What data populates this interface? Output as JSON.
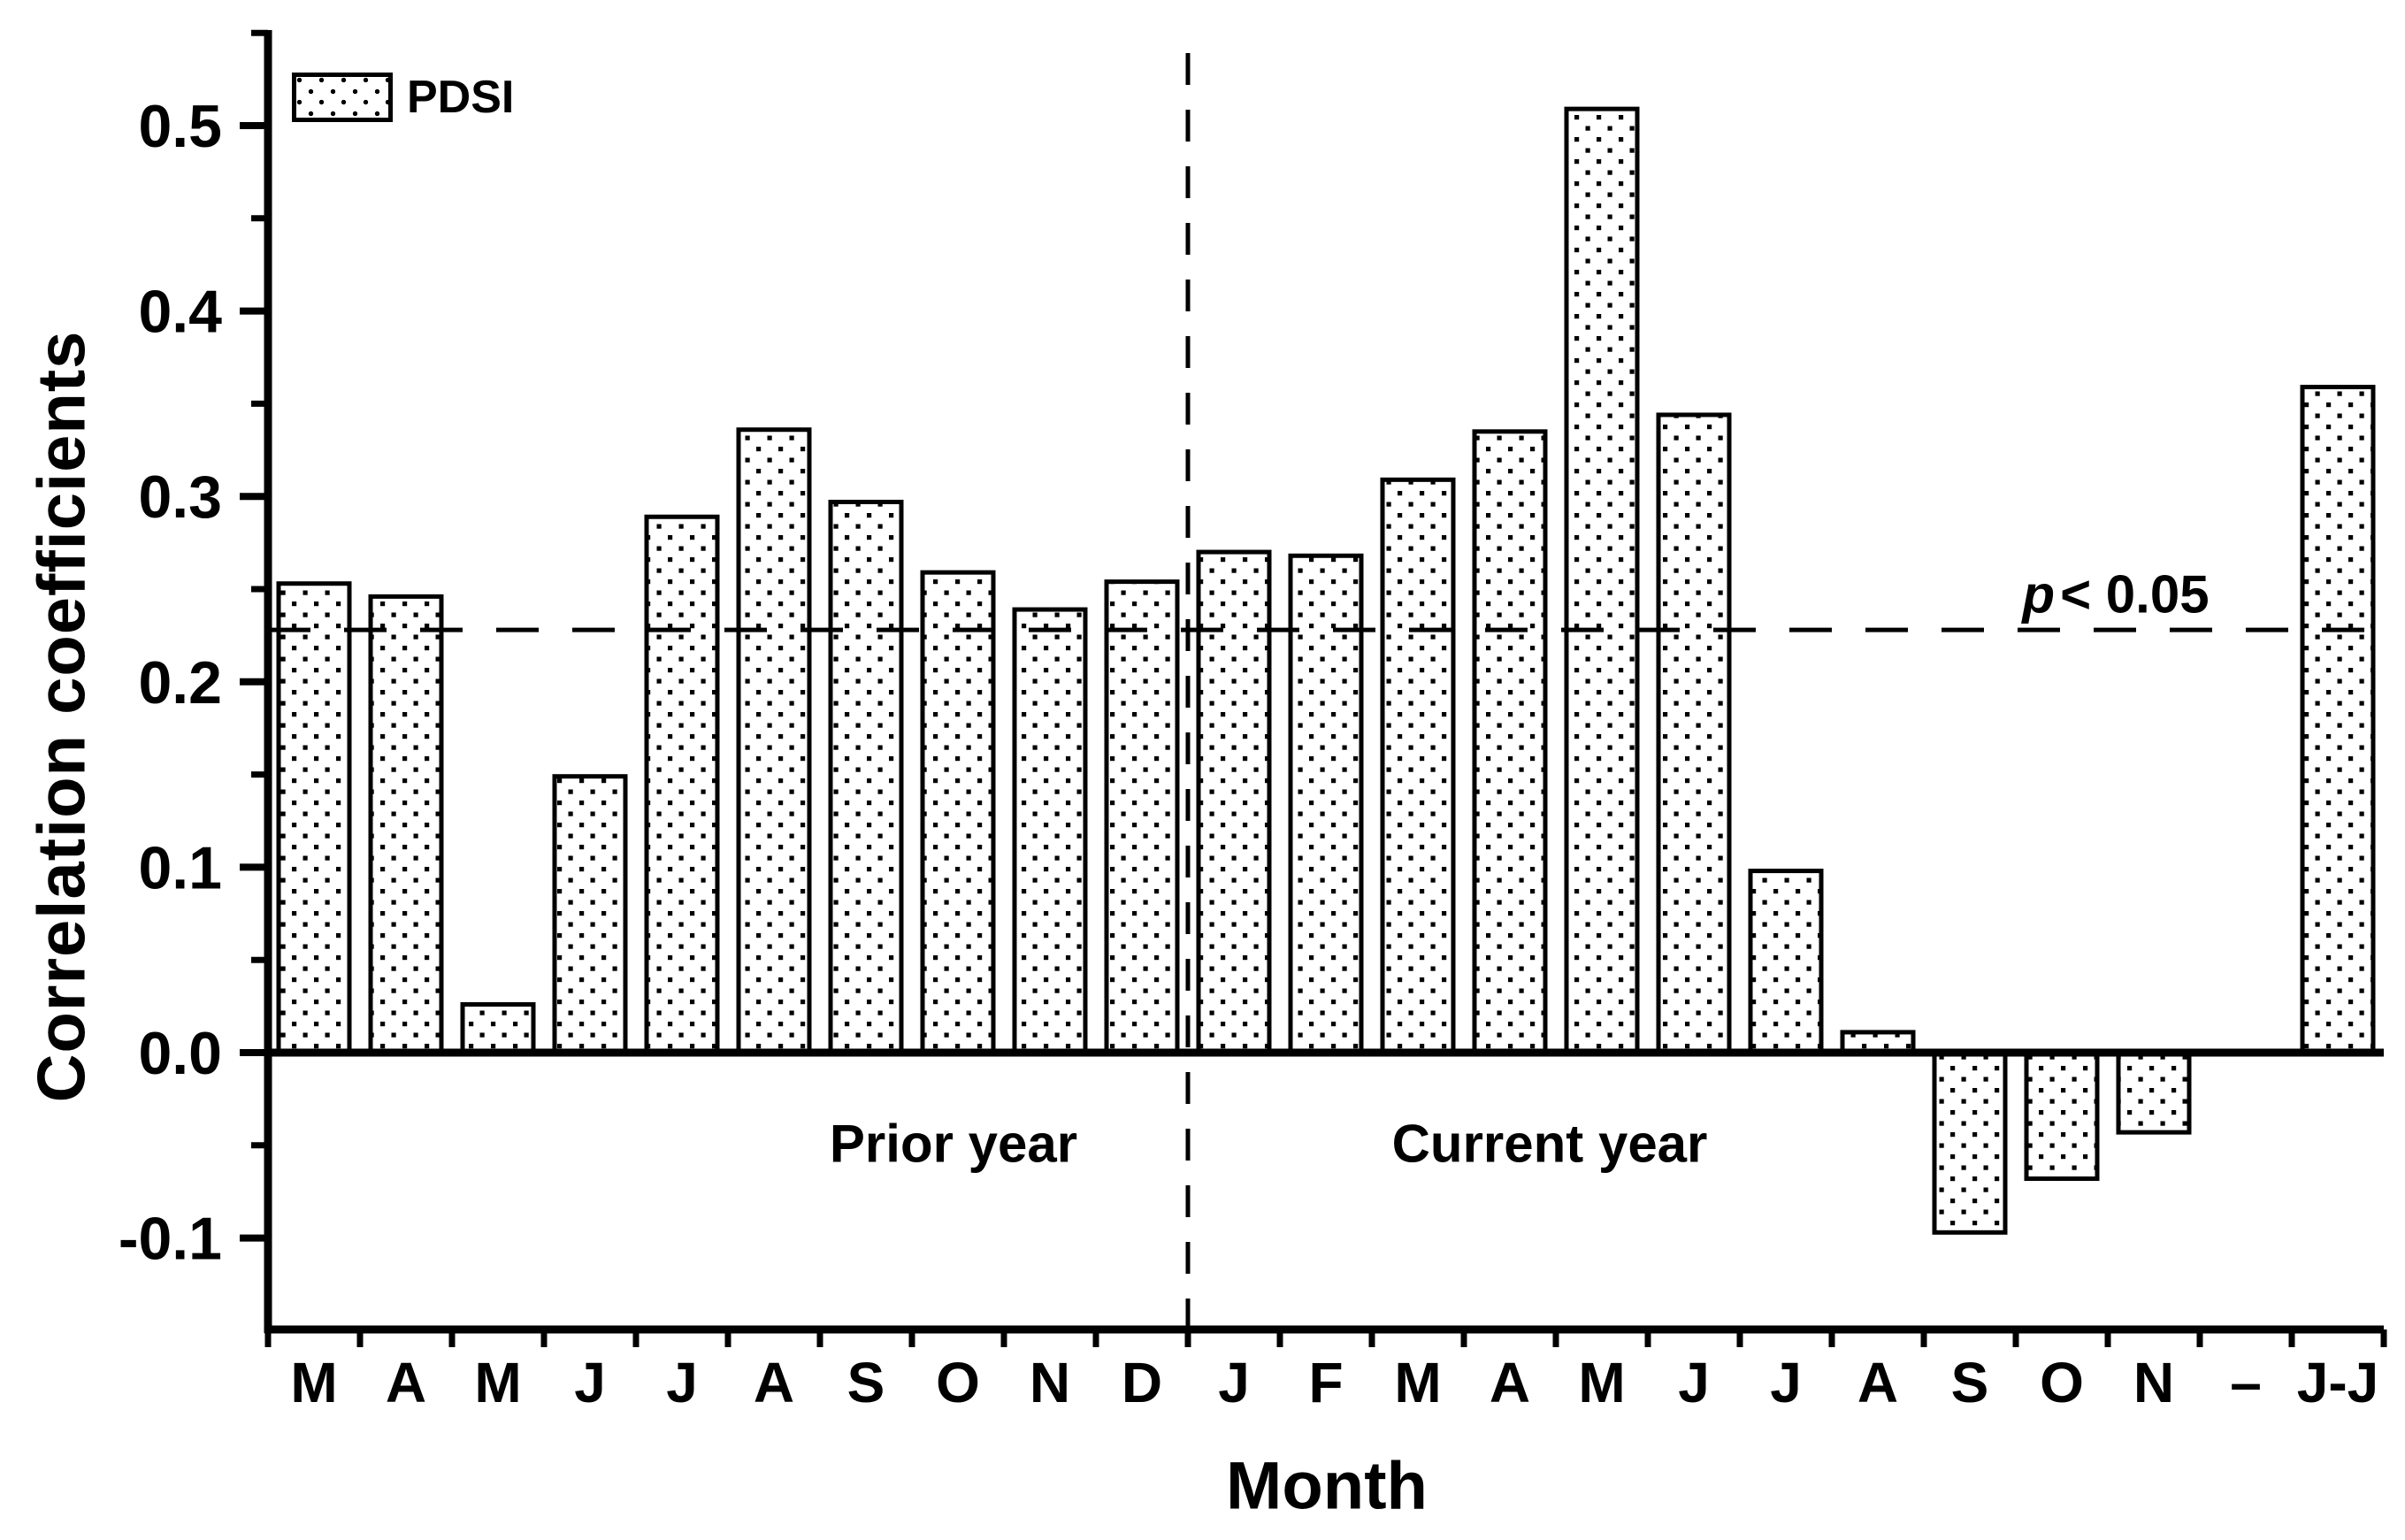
{
  "figure": {
    "background": "#ffffff",
    "ink": "#000000"
  },
  "axes": {
    "x_title": "Month",
    "y_title": "Correlation coefficients"
  },
  "legend": {
    "series_label": "PDSI"
  },
  "annotations": {
    "prior_year": "Prior year",
    "current_year": "Current year",
    "significance_var": "p",
    "significance_rest": "< 0.05"
  },
  "chart_data": {
    "type": "bar",
    "title": "",
    "xlabel": "Month",
    "ylabel": "Correlation coefficients",
    "legend": {
      "label": "PDSI",
      "position": "top-left"
    },
    "grid": false,
    "categories": [
      "M",
      "A",
      "M",
      "J",
      "J",
      "A",
      "S",
      "O",
      "N",
      "D",
      "J",
      "F",
      "M",
      "A",
      "M",
      "J",
      "J",
      "A",
      "S",
      "O",
      "N",
      "–",
      "J-J"
    ],
    "series": [
      {
        "name": "PDSI",
        "values": [
          0.253,
          0.246,
          0.026,
          0.149,
          0.289,
          0.336,
          0.297,
          0.259,
          0.239,
          0.254,
          0.27,
          0.268,
          0.309,
          0.335,
          0.509,
          0.344,
          0.098,
          0.011,
          -0.097,
          -0.068,
          -0.043,
          null,
          0.359
        ]
      }
    ],
    "ylim": [
      -0.15,
      0.551
    ],
    "yticks_major": [
      -0.1,
      0.0,
      0.1,
      0.2,
      0.3,
      0.4,
      0.5
    ],
    "ytick_labels": [
      "-0.1",
      "0.0",
      "0.1",
      "0.2",
      "0.3",
      "0.4",
      "0.5"
    ],
    "yticks_minor": [
      -0.05,
      0.05,
      0.15,
      0.25,
      0.35,
      0.45,
      0.55
    ],
    "significance_line": {
      "value": 0.228,
      "label": "p < 0.05",
      "style": "dashed"
    },
    "period_divider": {
      "after_category_index": 9,
      "style": "dashed-vertical"
    },
    "period_labels": [
      "Prior year",
      "Current year"
    ],
    "bar_style": {
      "fill": "#ffffff",
      "pattern": "dot-grid",
      "edge": "#000000"
    }
  }
}
